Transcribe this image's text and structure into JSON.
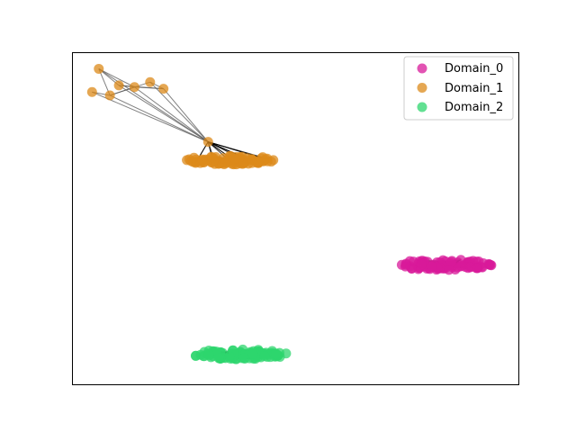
{
  "chart_data": {
    "type": "scatter",
    "title": "",
    "xlabel": "",
    "ylabel": "",
    "grid": false,
    "axes_ticks": false,
    "xlim": [
      0,
      100
    ],
    "ylim": [
      0,
      100
    ],
    "legend": {
      "placement": "top-right"
    },
    "edge_color": "#000000",
    "series": [
      {
        "name": "Domain_0",
        "color": "#d8199a",
        "cluster": {
          "center": [
            83,
            36
          ],
          "spread": [
            11,
            1.6
          ],
          "count": 90
        }
      },
      {
        "name": "Domain_1",
        "color": "#dc8a1a",
        "cluster": {
          "center": [
            35.5,
            67.5
          ],
          "spread": [
            10.5,
            1.3
          ],
          "count": 95
        },
        "extra_points": [
          [
            6,
            95
          ],
          [
            4.5,
            88
          ],
          [
            8.5,
            87
          ],
          [
            10.5,
            90
          ],
          [
            14,
            89.5
          ],
          [
            17.5,
            91
          ],
          [
            20.5,
            89
          ],
          [
            30.5,
            73
          ]
        ]
      },
      {
        "name": "Domain_2",
        "color": "#2ed66e",
        "cluster": {
          "center": [
            37.5,
            9
          ],
          "spread": [
            11,
            1.5
          ],
          "count": 95
        }
      }
    ]
  }
}
